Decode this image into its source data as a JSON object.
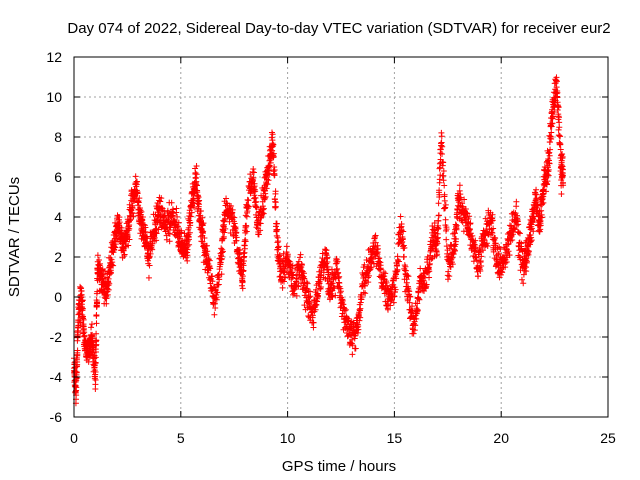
{
  "chart_data": {
    "type": "scatter",
    "title": "Day 074 of 2022, Sidereal Day-to-day VTEC variation (SDTVAR) for receiver eur2",
    "xlabel": "GPS time / hours",
    "ylabel": "SDTVAR / TECUs",
    "xlim": [
      0,
      25
    ],
    "ylim": [
      -6,
      12
    ],
    "x_ticks": [
      0,
      5,
      10,
      15,
      20,
      25
    ],
    "y_ticks": [
      -6,
      -4,
      -2,
      0,
      2,
      4,
      6,
      8,
      10,
      12
    ],
    "x_tick_labels": [
      "0",
      "5",
      "10",
      "15",
      "20",
      "25"
    ],
    "y_tick_labels": [
      "-6",
      "-4",
      "-2",
      "0",
      "2",
      "4",
      "6",
      "8",
      "10",
      "12"
    ],
    "grid": true,
    "marker": "+",
    "series": [
      {
        "name": "SDTVAR",
        "color": "#ff0000",
        "trend": [
          [
            0.0,
            -3.5
          ],
          [
            0.1,
            -4.5
          ],
          [
            0.2,
            -1.0
          ],
          [
            0.35,
            0.0
          ],
          [
            0.5,
            -2.5
          ],
          [
            0.7,
            -2.8
          ],
          [
            0.85,
            -2.0
          ],
          [
            1.0,
            -4.0
          ],
          [
            1.1,
            1.5
          ],
          [
            1.3,
            1.0
          ],
          [
            1.5,
            0.3
          ],
          [
            1.7,
            1.5
          ],
          [
            1.9,
            3.0
          ],
          [
            2.1,
            3.5
          ],
          [
            2.3,
            2.5
          ],
          [
            2.5,
            3.2
          ],
          [
            2.7,
            4.5
          ],
          [
            2.9,
            5.5
          ],
          [
            3.1,
            4.0
          ],
          [
            3.3,
            3.0
          ],
          [
            3.5,
            2.0
          ],
          [
            3.8,
            3.5
          ],
          [
            4.0,
            4.5
          ],
          [
            4.3,
            3.5
          ],
          [
            4.6,
            4.0
          ],
          [
            4.9,
            3.0
          ],
          [
            5.1,
            2.5
          ],
          [
            5.3,
            2.5
          ],
          [
            5.5,
            4.5
          ],
          [
            5.7,
            6.0
          ],
          [
            5.9,
            4.0
          ],
          [
            6.1,
            2.5
          ],
          [
            6.3,
            1.5
          ],
          [
            6.6,
            -0.3
          ],
          [
            6.9,
            2.0
          ],
          [
            7.1,
            4.5
          ],
          [
            7.4,
            4.0
          ],
          [
            7.7,
            2.0
          ],
          [
            7.9,
            1.0
          ],
          [
            8.1,
            4.5
          ],
          [
            8.4,
            6.0
          ],
          [
            8.6,
            3.5
          ],
          [
            8.9,
            5.0
          ],
          [
            9.1,
            6.5
          ],
          [
            9.3,
            7.8
          ],
          [
            9.5,
            3.0
          ],
          [
            9.7,
            1.0
          ],
          [
            10.0,
            2.0
          ],
          [
            10.3,
            0.5
          ],
          [
            10.6,
            1.5
          ],
          [
            10.9,
            0.0
          ],
          [
            11.2,
            -1.0
          ],
          [
            11.5,
            1.0
          ],
          [
            11.8,
            2.0
          ],
          [
            12.0,
            0.0
          ],
          [
            12.3,
            1.5
          ],
          [
            12.6,
            -0.8
          ],
          [
            12.9,
            -1.8
          ],
          [
            13.2,
            -2.0
          ],
          [
            13.5,
            0.5
          ],
          [
            13.8,
            1.5
          ],
          [
            14.1,
            2.5
          ],
          [
            14.4,
            1.0
          ],
          [
            14.7,
            0.0
          ],
          [
            15.0,
            0.5
          ],
          [
            15.3,
            3.5
          ],
          [
            15.6,
            0.5
          ],
          [
            15.9,
            -1.5
          ],
          [
            16.2,
            0.5
          ],
          [
            16.5,
            1.0
          ],
          [
            16.8,
            3.0
          ],
          [
            17.0,
            2.5
          ],
          [
            17.2,
            8.0
          ],
          [
            17.5,
            1.5
          ],
          [
            17.8,
            2.5
          ],
          [
            18.0,
            5.0
          ],
          [
            18.3,
            4.0
          ],
          [
            18.6,
            3.0
          ],
          [
            18.9,
            1.5
          ],
          [
            19.2,
            3.0
          ],
          [
            19.5,
            4.0
          ],
          [
            19.8,
            1.8
          ],
          [
            20.1,
            1.5
          ],
          [
            20.4,
            3.0
          ],
          [
            20.7,
            4.0
          ],
          [
            21.0,
            1.5
          ],
          [
            21.2,
            2.0
          ],
          [
            21.4,
            3.5
          ],
          [
            21.6,
            5.0
          ],
          [
            21.8,
            3.5
          ],
          [
            22.0,
            5.5
          ],
          [
            22.2,
            6.5
          ],
          [
            22.4,
            9.5
          ],
          [
            22.6,
            10.5
          ],
          [
            22.8,
            6.5
          ],
          [
            22.9,
            6.0
          ]
        ]
      }
    ]
  }
}
